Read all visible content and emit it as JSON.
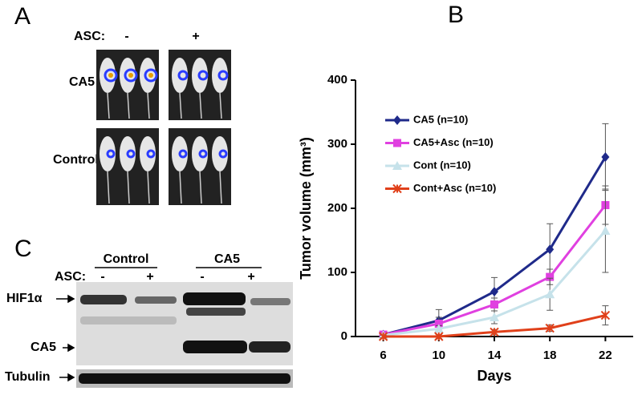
{
  "panel_a": {
    "label": "A",
    "asc_label": "ASC:",
    "conditions": [
      "-",
      "+"
    ],
    "rows": [
      "CA5",
      "Control"
    ]
  },
  "chart_data": {
    "type": "line",
    "panel_label": "B",
    "xlabel": "Days",
    "ylabel": "Tumor volume (mm³)",
    "x": [
      6,
      10,
      14,
      18,
      22
    ],
    "xlim": [
      4,
      24
    ],
    "xticks": [
      6,
      10,
      14,
      18,
      22
    ],
    "ylim": [
      0,
      400
    ],
    "yticks": [
      0,
      100,
      200,
      300,
      400
    ],
    "legend": "upper-left",
    "series": [
      {
        "name": "CA5 (n=10)",
        "color": "#1f2a8a",
        "marker": "diamond",
        "values": [
          3,
          25,
          70,
          136,
          280
        ],
        "errors": [
          2,
          17,
          22,
          40,
          52
        ]
      },
      {
        "name": "CA5+Asc (n=10)",
        "color": "#e040e0",
        "marker": "square",
        "values": [
          3,
          20,
          50,
          93,
          205
        ],
        "errors": [
          2,
          10,
          10,
          12,
          30
        ]
      },
      {
        "name": "Cont (n=10)",
        "color": "#c6e2ea",
        "marker": "triangle",
        "values": [
          2,
          12,
          30,
          66,
          165
        ],
        "errors": [
          2,
          5,
          10,
          25,
          65
        ]
      },
      {
        "name": "Cont+Asc (n=10)",
        "color": "#e0401a",
        "marker": "star",
        "values": [
          0,
          0,
          7,
          13,
          33
        ],
        "errors": [
          2,
          3,
          4,
          5,
          15
        ]
      }
    ]
  },
  "panel_c": {
    "label": "C",
    "groups": [
      "Control",
      "CA5"
    ],
    "asc_label": "ASC:",
    "conditions": [
      "-",
      "+",
      "-",
      "+"
    ],
    "bands": [
      "HIF1α",
      "CA5"
    ],
    "loading": "Tubulin"
  }
}
